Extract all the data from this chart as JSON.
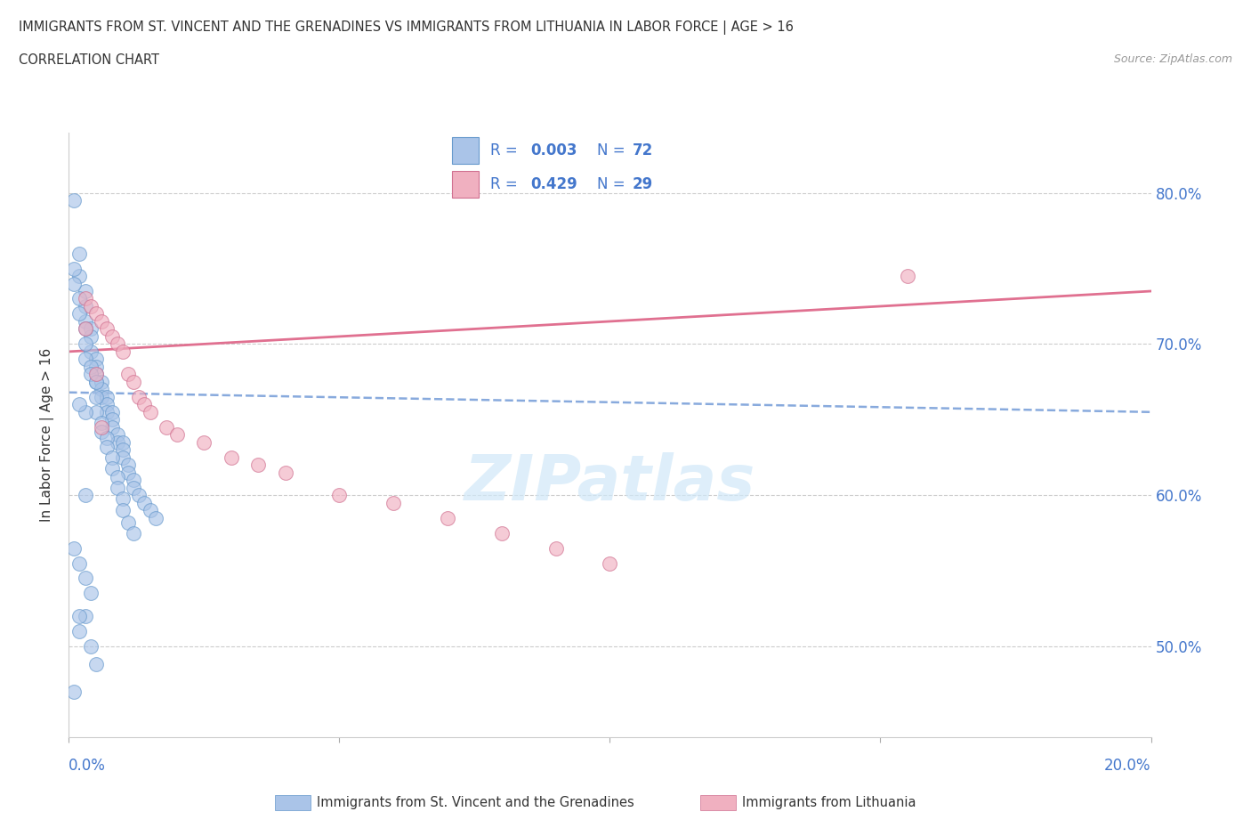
{
  "title": "IMMIGRANTS FROM ST. VINCENT AND THE GRENADINES VS IMMIGRANTS FROM LITHUANIA IN LABOR FORCE | AGE > 16",
  "subtitle": "CORRELATION CHART",
  "source": "Source: ZipAtlas.com",
  "ylabel": "In Labor Force | Age > 16",
  "right_yticks": [
    0.5,
    0.6,
    0.7,
    0.8
  ],
  "right_yticklabels": [
    "50.0%",
    "60.0%",
    "70.0%",
    "80.0%"
  ],
  "blue_label": "Immigrants from St. Vincent and the Grenadines",
  "pink_label": "Immigrants from Lithuania",
  "blue_R": "0.003",
  "blue_N": "72",
  "pink_R": "0.429",
  "pink_N": "29",
  "blue_scatter_x": [
    0.001,
    0.002,
    0.002,
    0.003,
    0.003,
    0.003,
    0.004,
    0.004,
    0.004,
    0.005,
    0.005,
    0.005,
    0.005,
    0.006,
    0.006,
    0.006,
    0.007,
    0.007,
    0.007,
    0.008,
    0.008,
    0.008,
    0.009,
    0.009,
    0.01,
    0.01,
    0.01,
    0.011,
    0.011,
    0.012,
    0.012,
    0.013,
    0.014,
    0.015,
    0.016,
    0.001,
    0.001,
    0.002,
    0.002,
    0.003,
    0.003,
    0.003,
    0.004,
    0.004,
    0.005,
    0.005,
    0.005,
    0.006,
    0.006,
    0.007,
    0.007,
    0.008,
    0.008,
    0.009,
    0.009,
    0.01,
    0.01,
    0.011,
    0.012,
    0.001,
    0.002,
    0.003,
    0.004,
    0.003,
    0.002,
    0.004,
    0.005,
    0.003,
    0.001,
    0.002,
    0.003,
    0.002
  ],
  "blue_scatter_y": [
    0.795,
    0.76,
    0.745,
    0.735,
    0.725,
    0.715,
    0.71,
    0.705,
    0.695,
    0.69,
    0.685,
    0.68,
    0.675,
    0.675,
    0.67,
    0.665,
    0.665,
    0.66,
    0.655,
    0.655,
    0.65,
    0.645,
    0.64,
    0.635,
    0.635,
    0.63,
    0.625,
    0.62,
    0.615,
    0.61,
    0.605,
    0.6,
    0.595,
    0.59,
    0.585,
    0.75,
    0.74,
    0.73,
    0.72,
    0.71,
    0.7,
    0.69,
    0.685,
    0.68,
    0.675,
    0.665,
    0.655,
    0.648,
    0.642,
    0.638,
    0.632,
    0.625,
    0.618,
    0.612,
    0.605,
    0.598,
    0.59,
    0.582,
    0.575,
    0.565,
    0.555,
    0.545,
    0.535,
    0.52,
    0.51,
    0.5,
    0.488,
    0.6,
    0.47,
    0.52,
    0.655,
    0.66
  ],
  "pink_scatter_x": [
    0.003,
    0.004,
    0.005,
    0.006,
    0.007,
    0.008,
    0.009,
    0.01,
    0.011,
    0.012,
    0.013,
    0.014,
    0.015,
    0.018,
    0.02,
    0.025,
    0.03,
    0.035,
    0.04,
    0.05,
    0.06,
    0.07,
    0.08,
    0.09,
    0.1,
    0.003,
    0.005,
    0.006,
    0.155
  ],
  "pink_scatter_y": [
    0.73,
    0.725,
    0.72,
    0.715,
    0.71,
    0.705,
    0.7,
    0.695,
    0.68,
    0.675,
    0.665,
    0.66,
    0.655,
    0.645,
    0.64,
    0.635,
    0.625,
    0.62,
    0.615,
    0.6,
    0.595,
    0.585,
    0.575,
    0.565,
    0.555,
    0.71,
    0.68,
    0.645,
    0.745
  ],
  "blue_line_x": [
    0.0,
    0.2
  ],
  "blue_line_y": [
    0.668,
    0.655
  ],
  "pink_line_x": [
    0.0,
    0.2
  ],
  "pink_line_y": [
    0.695,
    0.735
  ],
  "xlim": [
    0.0,
    0.2
  ],
  "ylim": [
    0.44,
    0.84
  ],
  "blue_color": "#aac4e8",
  "blue_edge_color": "#6699cc",
  "pink_color": "#f0b0c0",
  "pink_edge_color": "#d07090",
  "blue_line_color": "#88aadd",
  "pink_line_color": "#e07090",
  "grid_color": "#cccccc",
  "watermark_color": "#d0e8f8",
  "axis_label_color": "#4477cc",
  "text_color": "#333333"
}
